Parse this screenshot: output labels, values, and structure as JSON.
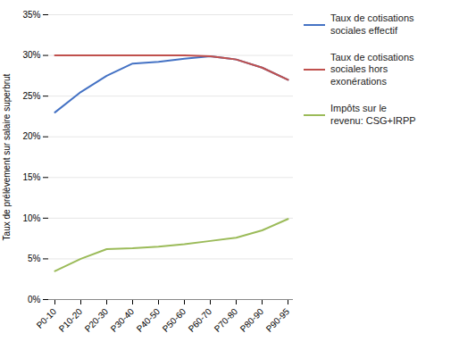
{
  "chart_data": {
    "type": "line",
    "categories": [
      "P0-10",
      "P10-20",
      "P20-30",
      "P30-40",
      "P40-50",
      "P50-60",
      "P60-70",
      "P70-80",
      "P80-90",
      "P90-95"
    ],
    "series": [
      {
        "name": "Taux de cotisations\nsociales effectif",
        "color": "#4472C4",
        "values": [
          0.23,
          0.255,
          0.275,
          0.29,
          0.292,
          0.296,
          0.299,
          0.295,
          0.285,
          0.27
        ]
      },
      {
        "name": "Taux de cotisations\nsociales hors\nexonérations",
        "color": "#C0504D",
        "values": [
          0.3,
          0.3,
          0.3,
          0.3,
          0.3,
          0.3,
          0.299,
          0.295,
          0.285,
          0.27
        ]
      },
      {
        "name": "Impôts sur le\nrevenu: CSG+IRPP",
        "color": "#9BBB59",
        "values": [
          0.035,
          0.05,
          0.062,
          0.063,
          0.065,
          0.068,
          0.072,
          0.076,
          0.085,
          0.099
        ]
      }
    ],
    "ylabel": "Taux de prélèvement sur salaire superbrut",
    "ylim": [
      0.0,
      0.35
    ],
    "yticks": [
      {
        "value": 0.0,
        "label": "0%"
      },
      {
        "value": 0.05,
        "label": "5%"
      },
      {
        "value": 0.1,
        "label": "10%"
      },
      {
        "value": 0.15,
        "label": "15%"
      },
      {
        "value": 0.2,
        "label": "20%"
      },
      {
        "value": 0.25,
        "label": "25%"
      },
      {
        "value": 0.3,
        "label": "30%"
      },
      {
        "value": 0.35,
        "label": "35%"
      }
    ],
    "grid": true,
    "legend": "right"
  }
}
